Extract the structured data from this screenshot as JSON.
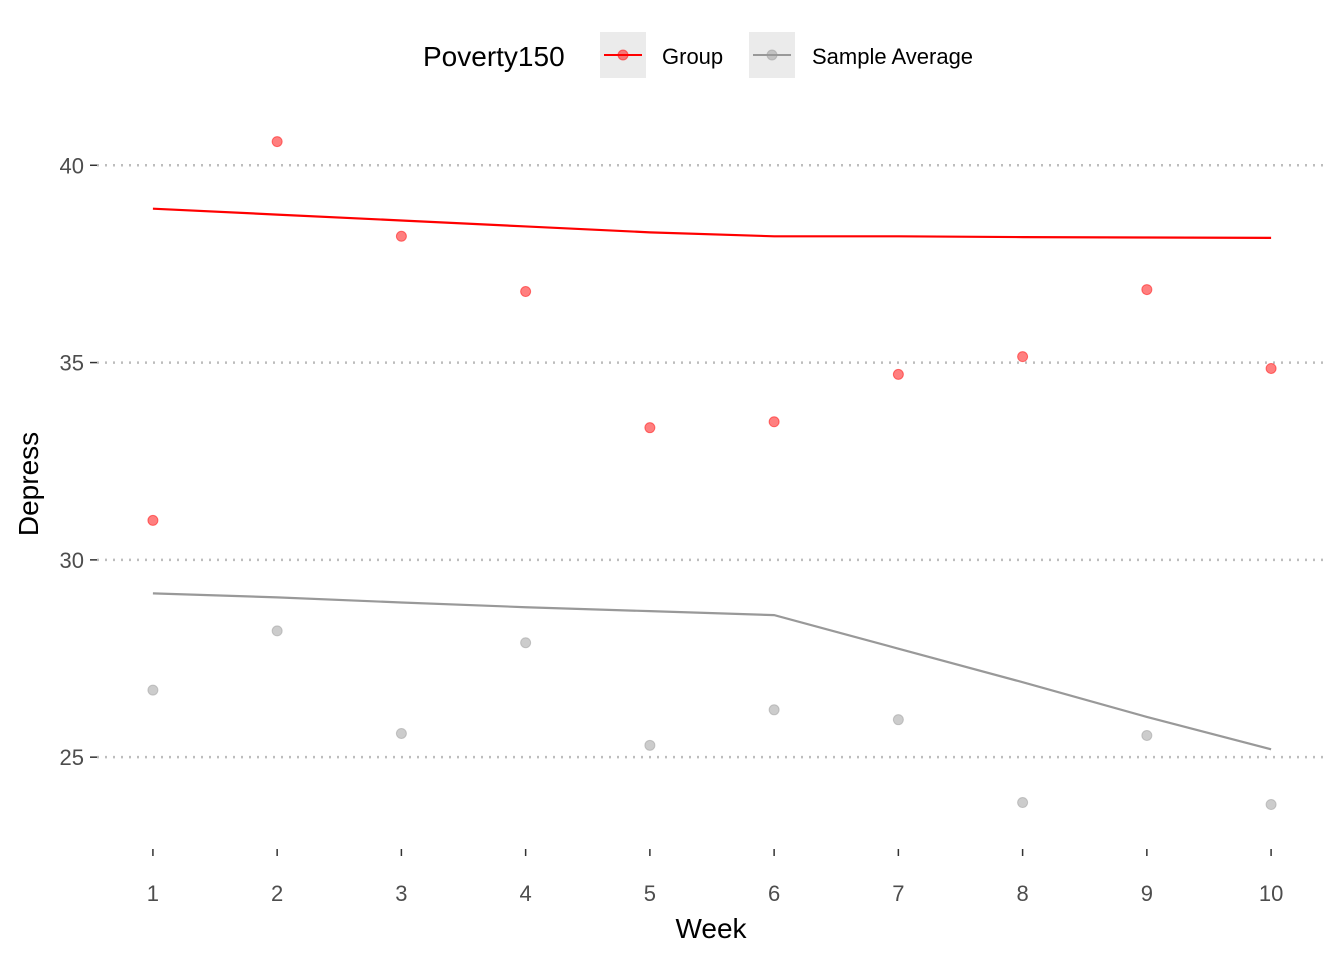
{
  "chart_data": {
    "type": "line",
    "xlabel": "Week",
    "ylabel": "Depress",
    "x": [
      1,
      2,
      3,
      4,
      5,
      6,
      7,
      8,
      9,
      10
    ],
    "xlim": [
      0.55,
      10.45
    ],
    "ylim": [
      22.85,
      41.35
    ],
    "yticks": [
      25,
      30,
      35,
      40
    ],
    "grid": "horizontal dotted",
    "legend": {
      "title": "Poverty150",
      "position": "top",
      "entries": [
        "Group",
        "Sample Average"
      ]
    },
    "series": [
      {
        "name": "Group",
        "color": "#ff0000",
        "points": [
          31.0,
          40.6,
          38.2,
          36.8,
          33.35,
          33.5,
          34.7,
          35.15,
          36.85,
          34.85
        ],
        "line": [
          38.9,
          38.75,
          38.6,
          38.45,
          38.3,
          38.2,
          38.2,
          38.18,
          38.17,
          38.16
        ]
      },
      {
        "name": "Sample Average",
        "color": "#999999",
        "points": [
          26.7,
          28.2,
          25.6,
          27.9,
          25.3,
          26.2,
          25.95,
          23.85,
          25.55,
          23.8
        ],
        "line": [
          29.15,
          29.05,
          28.92,
          28.8,
          28.7,
          28.6,
          27.75,
          26.9,
          26.02,
          25.2
        ]
      }
    ]
  }
}
